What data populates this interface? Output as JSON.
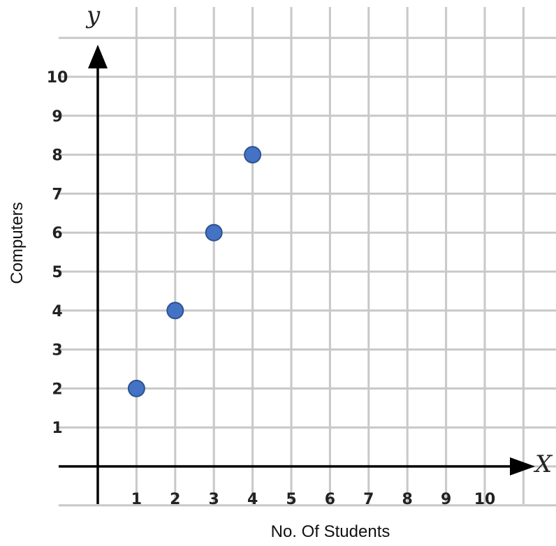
{
  "chart_data": {
    "type": "scatter",
    "title": "",
    "xlabel": "No. Of Students",
    "ylabel": "Computers",
    "x_axis_letter": "X",
    "y_axis_letter": "y",
    "xlim": [
      0,
      10
    ],
    "ylim": [
      0,
      10
    ],
    "x_ticks": [
      "1",
      "2",
      "3",
      "4",
      "5",
      "6",
      "7",
      "8",
      "9",
      "10"
    ],
    "y_ticks": [
      "1",
      "2",
      "3",
      "4",
      "5",
      "6",
      "7",
      "8",
      "9",
      "10"
    ],
    "grid": true,
    "points": [
      {
        "x": 1,
        "y": 2
      },
      {
        "x": 2,
        "y": 4
      },
      {
        "x": 3,
        "y": 6
      },
      {
        "x": 4,
        "y": 8
      }
    ],
    "point_color": "#4472c4",
    "point_edge_color": "#2f528f",
    "grid_color": "#c8c8c8",
    "axis_color": "#000000"
  }
}
